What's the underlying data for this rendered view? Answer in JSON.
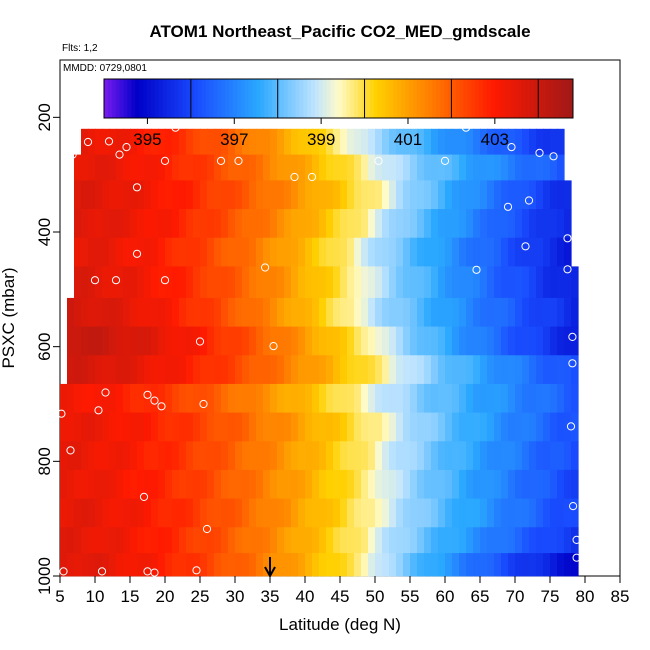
{
  "chart_data": {
    "type": "heatmap",
    "title": "ATOM1 Northeast_Pacific CO2_MED_gmdscale",
    "flights_note": "Flts: 1,2",
    "date_note": "MMDD: 0729,0801",
    "xlabel": "Latitude (deg N)",
    "ylabel": "PSXC (mbar)",
    "xlim": [
      5,
      85
    ],
    "ylim": [
      1000,
      100
    ],
    "x_ticks": [
      5,
      10,
      15,
      20,
      25,
      30,
      35,
      40,
      45,
      50,
      55,
      60,
      65,
      70,
      75,
      80,
      85
    ],
    "y_ticks": [
      200,
      400,
      600,
      800,
      1000
    ],
    "colorbar": {
      "min": 394,
      "max": 404.8,
      "tick_values": [
        395,
        397,
        399,
        401,
        403
      ],
      "boundaries": [
        396,
        398,
        400,
        402,
        404
      ],
      "colors": [
        "#7a1cf0",
        "#0000c8",
        "#1a4dff",
        "#2aa8ff",
        "#bfe4ff",
        "#fffbc8",
        "#ffd000",
        "#ff7a00",
        "#ff1a00",
        "#a01818"
      ],
      "color_positions": [
        0,
        0.07,
        0.2,
        0.33,
        0.45,
        0.5,
        0.58,
        0.7,
        0.83,
        1
      ]
    },
    "grid": {
      "lat_start": 5,
      "lat_step": 1,
      "columns": 74,
      "rows": [
        {
          "p_top": 220,
          "p_bottom": 265,
          "lat_min": 8,
          "lat_max": 77,
          "c_south": 403.4,
          "mid_lat": 45,
          "c_north": 395.5
        },
        {
          "p_top": 265,
          "p_bottom": 310,
          "lat_min": 7,
          "lat_max": 77,
          "c_south": 403.5,
          "mid_lat": 48,
          "c_north": 396.2
        },
        {
          "p_top": 310,
          "p_bottom": 360,
          "lat_min": 7,
          "lat_max": 78,
          "c_south": 403.6,
          "mid_lat": 50,
          "c_north": 395.4
        },
        {
          "p_top": 360,
          "p_bottom": 410,
          "lat_min": 7,
          "lat_max": 78,
          "c_south": 403.6,
          "mid_lat": 48,
          "c_north": 395.3
        },
        {
          "p_top": 410,
          "p_bottom": 460,
          "lat_min": 7,
          "lat_max": 78,
          "c_south": 403.5,
          "mid_lat": 46,
          "c_north": 395.2
        },
        {
          "p_top": 460,
          "p_bottom": 515,
          "lat_min": 7,
          "lat_max": 79,
          "c_south": 403.6,
          "mid_lat": 47,
          "c_north": 395.2
        },
        {
          "p_top": 515,
          "p_bottom": 565,
          "lat_min": 6,
          "lat_max": 79,
          "c_south": 403.8,
          "mid_lat": 46,
          "c_north": 395.4
        },
        {
          "p_top": 565,
          "p_bottom": 615,
          "lat_min": 6,
          "lat_max": 80,
          "c_south": 404.1,
          "mid_lat": 49,
          "c_north": 395.1
        },
        {
          "p_top": 615,
          "p_bottom": 665,
          "lat_min": 6,
          "lat_max": 79,
          "c_south": 403.8,
          "mid_lat": 51,
          "c_north": 396.0
        },
        {
          "p_top": 665,
          "p_bottom": 715,
          "lat_min": 5,
          "lat_max": 79,
          "c_south": 403.2,
          "mid_lat": 47,
          "c_north": 396.3
        },
        {
          "p_top": 715,
          "p_bottom": 765,
          "lat_min": 5,
          "lat_max": 79,
          "c_south": 403.4,
          "mid_lat": 50,
          "c_north": 396.1
        },
        {
          "p_top": 765,
          "p_bottom": 815,
          "lat_min": 5,
          "lat_max": 79,
          "c_south": 403.4,
          "mid_lat": 49,
          "c_north": 396.0
        },
        {
          "p_top": 815,
          "p_bottom": 865,
          "lat_min": 5,
          "lat_max": 79,
          "c_south": 403.4,
          "mid_lat": 49,
          "c_north": 395.9
        },
        {
          "p_top": 865,
          "p_bottom": 915,
          "lat_min": 5,
          "lat_max": 79,
          "c_south": 403.5,
          "mid_lat": 49,
          "c_north": 395.9
        },
        {
          "p_top": 915,
          "p_bottom": 960,
          "lat_min": 5,
          "lat_max": 79,
          "c_south": 403.5,
          "mid_lat": 48,
          "c_north": 395.6
        },
        {
          "p_top": 960,
          "p_bottom": 1005,
          "lat_min": 5,
          "lat_max": 79,
          "c_south": 403.6,
          "mid_lat": 48,
          "c_north": 394.8
        }
      ]
    },
    "observations": [
      [
        21.5,
        218
      ],
      [
        63,
        218
      ],
      [
        12,
        242
      ],
      [
        9,
        243
      ],
      [
        14.5,
        252
      ],
      [
        69.5,
        252
      ],
      [
        73.5,
        262
      ],
      [
        75.5,
        268
      ],
      [
        6.8,
        265
      ],
      [
        13.5,
        265
      ],
      [
        20,
        276
      ],
      [
        28,
        276
      ],
      [
        30.5,
        276
      ],
      [
        50.5,
        276
      ],
      [
        60,
        276
      ],
      [
        38.5,
        304
      ],
      [
        41,
        304
      ],
      [
        16,
        322
      ],
      [
        72,
        345
      ],
      [
        69,
        356
      ],
      [
        77.5,
        411
      ],
      [
        71.5,
        425
      ],
      [
        16,
        438
      ],
      [
        34.3,
        462
      ],
      [
        64.5,
        466
      ],
      [
        77.5,
        465
      ],
      [
        10,
        484
      ],
      [
        13,
        484
      ],
      [
        20,
        484
      ],
      [
        78.2,
        583
      ],
      [
        25,
        591
      ],
      [
        35.5,
        599
      ],
      [
        78.2,
        629
      ],
      [
        11.5,
        680
      ],
      [
        17.5,
        684
      ],
      [
        18.5,
        694
      ],
      [
        19.5,
        704
      ],
      [
        25.5,
        700
      ],
      [
        10.5,
        711
      ],
      [
        5.2,
        717
      ],
      [
        78,
        739
      ],
      [
        6.5,
        781
      ],
      [
        17,
        862
      ],
      [
        78.3,
        878
      ],
      [
        26,
        918
      ],
      [
        78.8,
        937
      ],
      [
        78.8,
        968
      ],
      [
        5.5,
        992
      ],
      [
        11,
        992
      ],
      [
        17.5,
        992
      ],
      [
        18.5,
        994
      ],
      [
        24.5,
        990
      ]
    ],
    "arrow_marker_lat": 35
  }
}
